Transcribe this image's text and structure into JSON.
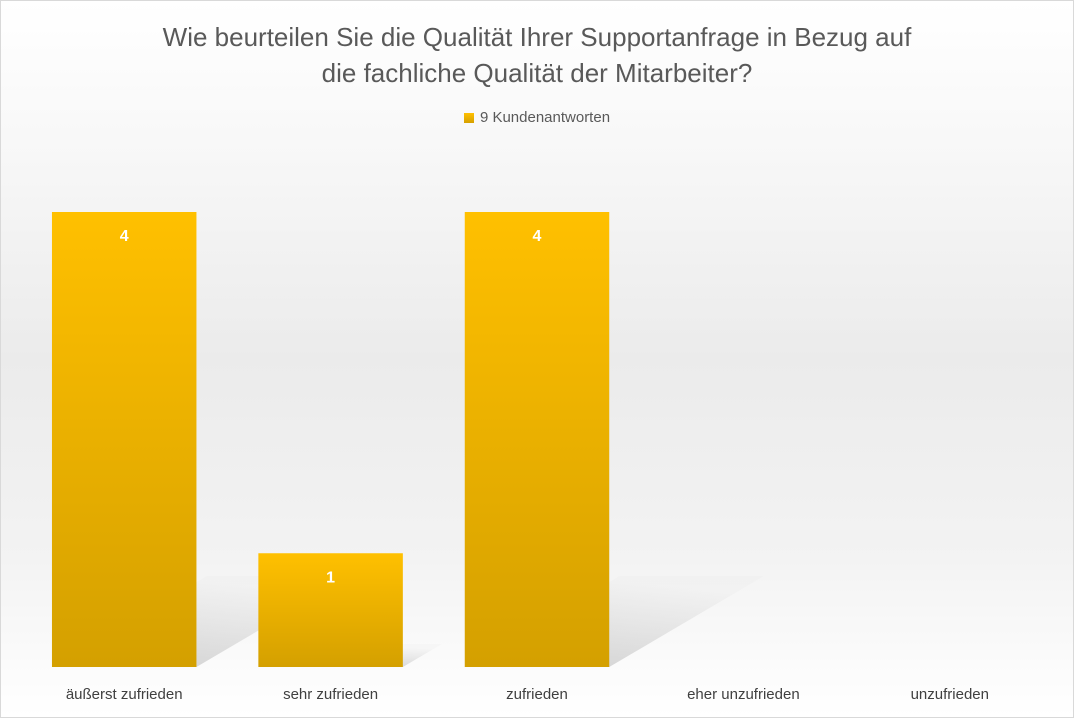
{
  "chart_data": {
    "type": "bar",
    "title_lines": [
      "Wie beurteilen Sie die Qualität Ihrer Supportanfrage in Bezug auf",
      "die fachliche Qualität der Mitarbeiter?"
    ],
    "legend": [
      "9 Kundenantworten"
    ],
    "legend_position": "top",
    "categories": [
      "äußerst zufrieden",
      "sehr zufrieden",
      "zufrieden",
      "eher unzufrieden",
      "unzufrieden"
    ],
    "series": [
      {
        "name": "9 Kundenantworten",
        "values": [
          4,
          1,
          4,
          0,
          0
        ]
      }
    ],
    "data_labels": [
      "4",
      "1",
      "4",
      "",
      ""
    ],
    "ylim": [
      0,
      4
    ],
    "grid": false,
    "xlabel": "",
    "ylabel": "",
    "colors": {
      "bar_top": "#ffc000",
      "bar_bottom": "#d4a000",
      "shadow": "#b0b0b0"
    }
  }
}
